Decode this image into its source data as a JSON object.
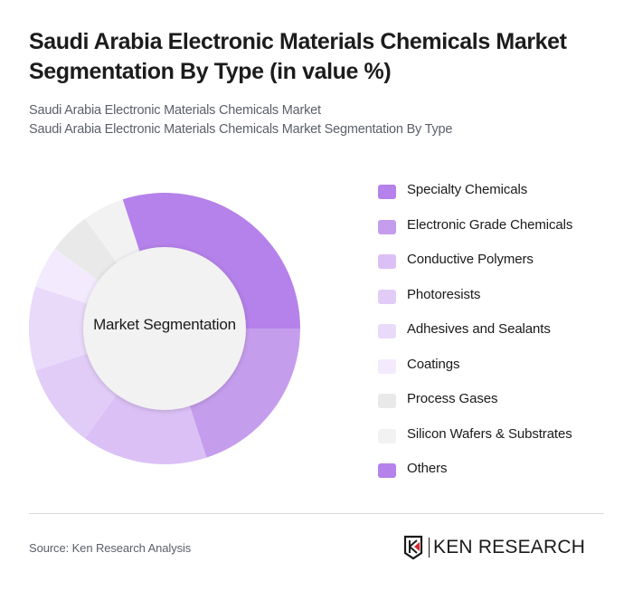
{
  "header": {
    "title": "Saudi Arabia Electronic Materials Chemicals Market Segmentation By Type (in value %)",
    "subtitle_1": "Saudi Arabia Electronic Materials Chemicals Market",
    "subtitle_2": "Saudi Arabia Electronic Materials Chemicals Market Segmentation By Type"
  },
  "chart": {
    "center_label": "Market Segmentation"
  },
  "legend": [
    {
      "label": "Specialty Chemicals",
      "color": "#b581ea"
    },
    {
      "label": "Electronic Grade Chemicals",
      "color": "#c59ded"
    },
    {
      "label": "Conductive Polymers",
      "color": "#dbc0f6"
    },
    {
      "label": "Photoresists",
      "color": "#e1ccf7"
    },
    {
      "label": "Adhesives and Sealants",
      "color": "#e9dafa"
    },
    {
      "label": "Coatings",
      "color": "#f3ebfd"
    },
    {
      "label": "Process Gases",
      "color": "#e9e9e9"
    },
    {
      "label": "Silicon Wafers & Substrates",
      "color": "#f2f2f2"
    },
    {
      "label": "Others",
      "color": "#b581ea"
    }
  ],
  "footer": {
    "source": "Source: Ken Research Analysis",
    "logo_text": "KEN RESEARCH"
  },
  "chart_data": {
    "type": "pie",
    "subtype": "donut",
    "title": "Saudi Arabia Electronic Materials Chemicals Market Segmentation By Type (in value %)",
    "center_label": "Market Segmentation",
    "categories": [
      "Specialty Chemicals",
      "Electronic Grade Chemicals",
      "Conductive Polymers",
      "Photoresists",
      "Adhesives and Sealants",
      "Coatings",
      "Process Gases",
      "Silicon Wafers & Substrates",
      "Others"
    ],
    "values": [
      30,
      20,
      15,
      10,
      10,
      5,
      5,
      5,
      0
    ],
    "colors": [
      "#b581ea",
      "#c59ded",
      "#dbc0f6",
      "#e1ccf7",
      "#e9dafa",
      "#f3ebfd",
      "#e9e9e9",
      "#f2f2f2",
      "#b581ea"
    ],
    "start_angle_deg": -18,
    "legend_position": "right",
    "unit": "%"
  }
}
